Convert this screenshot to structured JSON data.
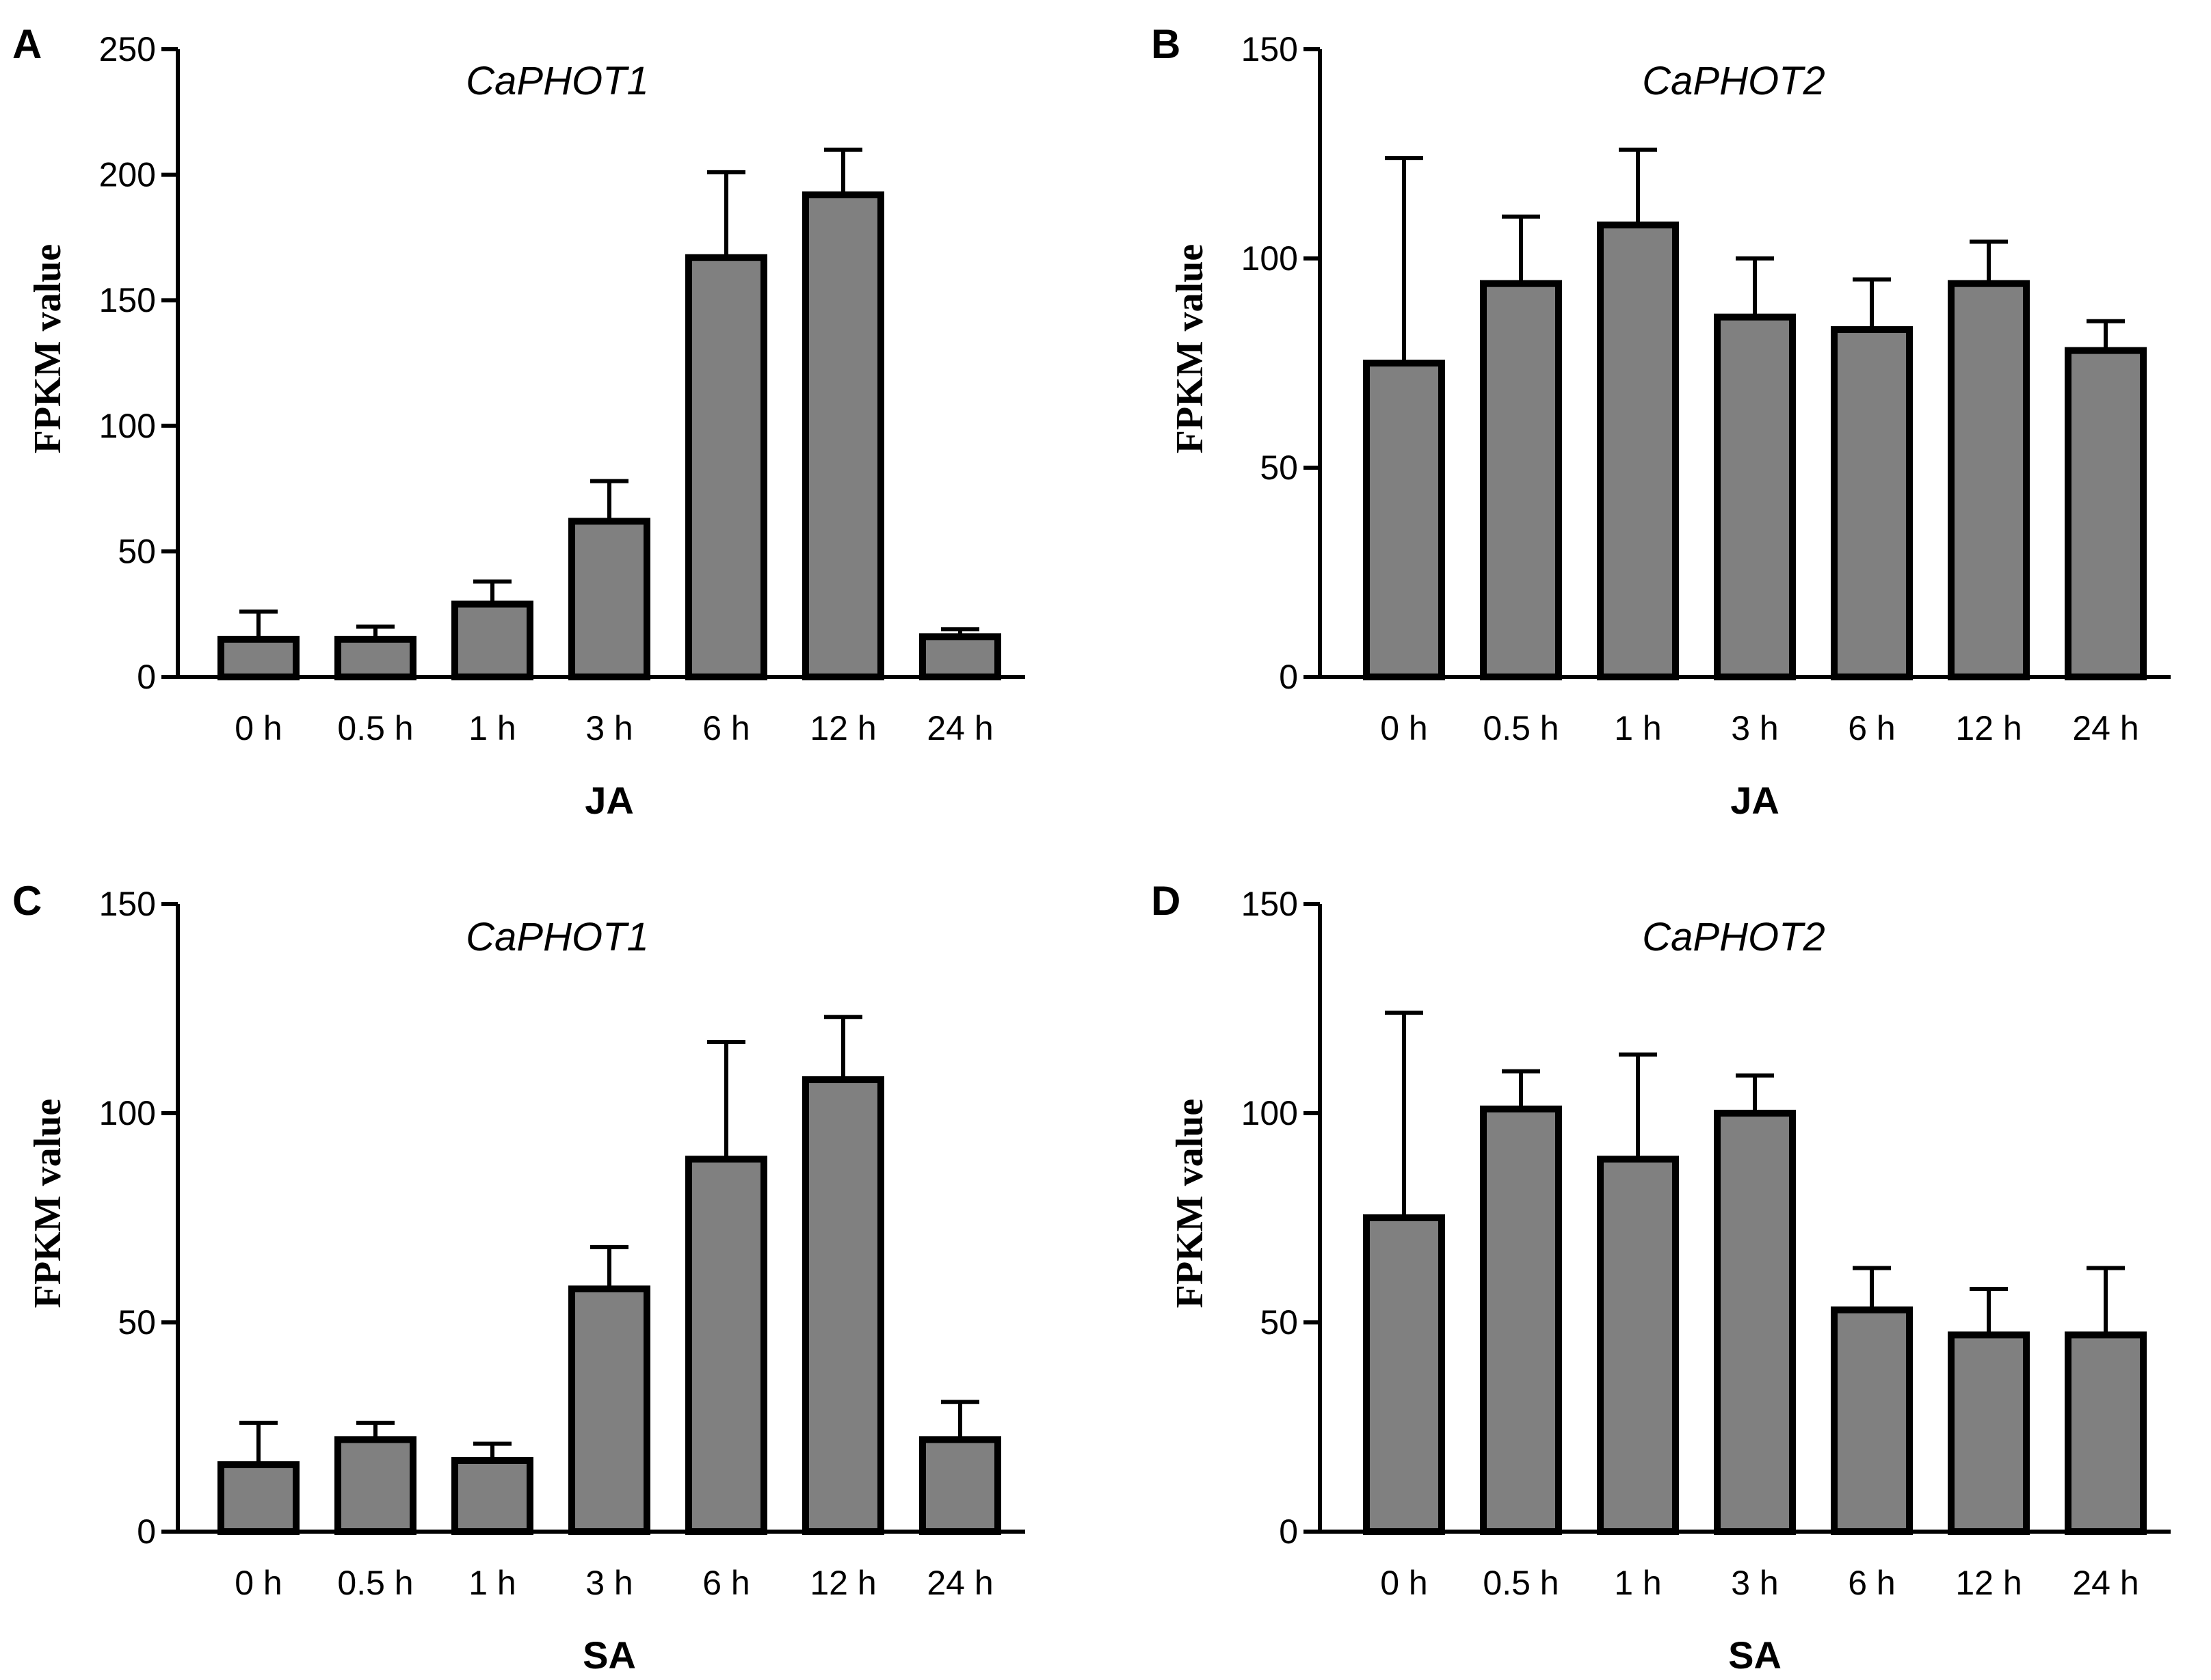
{
  "colors": {
    "bar_fill": "#808080",
    "stroke": "#000000",
    "background": "#ffffff"
  },
  "chart_data": [
    {
      "panel": "A",
      "type": "bar",
      "title": "CaPHOT1",
      "xlabel": "JA",
      "ylabel": "FPKM value",
      "categories": [
        "0 h",
        "0.5 h",
        "1 h",
        "3 h",
        "6 h",
        "12 h",
        "24 h"
      ],
      "values": [
        15,
        15,
        29,
        62,
        167,
        192,
        16
      ],
      "errors": [
        11,
        5,
        9,
        16,
        34,
        18,
        3
      ],
      "ylim": [
        0,
        250
      ],
      "yticks": [
        0,
        50,
        100,
        150,
        200,
        250
      ],
      "ytick_labels": [
        "0",
        "50",
        "100",
        "150",
        "200",
        "250"
      ],
      "grid": false
    },
    {
      "panel": "B",
      "type": "bar",
      "title": "CaPHOT2",
      "xlabel": "JA",
      "ylabel": "FPKM value",
      "categories": [
        "0 h",
        "0.5 h",
        "1 h",
        "3 h",
        "6 h",
        "12 h",
        "24 h"
      ],
      "values": [
        75,
        94,
        108,
        86,
        83,
        94,
        78
      ],
      "errors": [
        49,
        16,
        18,
        14,
        12,
        10,
        7
      ],
      "ylim": [
        0,
        150
      ],
      "yticks": [
        0,
        50,
        100,
        150
      ],
      "ytick_labels": [
        "0",
        "50",
        "100",
        "150"
      ],
      "grid": false
    },
    {
      "panel": "C",
      "type": "bar",
      "title": "CaPHOT1",
      "xlabel": "SA",
      "ylabel": "FPKM value",
      "categories": [
        "0 h",
        "0.5 h",
        "1 h",
        "3 h",
        "6 h",
        "12 h",
        "24 h"
      ],
      "values": [
        16,
        22,
        17,
        58,
        89,
        108,
        22
      ],
      "errors": [
        10,
        4,
        4,
        10,
        28,
        15,
        9
      ],
      "ylim": [
        0,
        150
      ],
      "yticks": [
        0,
        50,
        100,
        150
      ],
      "ytick_labels": [
        "0",
        "50",
        "100",
        "150"
      ],
      "grid": false
    },
    {
      "panel": "D",
      "type": "bar",
      "title": "CaPHOT2",
      "xlabel": "SA",
      "ylabel": "FPKM value",
      "categories": [
        "0 h",
        "0.5 h",
        "1 h",
        "3 h",
        "6 h",
        "12 h",
        "24 h"
      ],
      "values": [
        75,
        101,
        89,
        100,
        53,
        47,
        47
      ],
      "errors": [
        49,
        9,
        25,
        9,
        10,
        11,
        16
      ],
      "ylim": [
        0,
        150
      ],
      "yticks": [
        0,
        50,
        100,
        150
      ],
      "ytick_labels": [
        "0",
        "50",
        "100",
        "150"
      ],
      "grid": false
    }
  ]
}
